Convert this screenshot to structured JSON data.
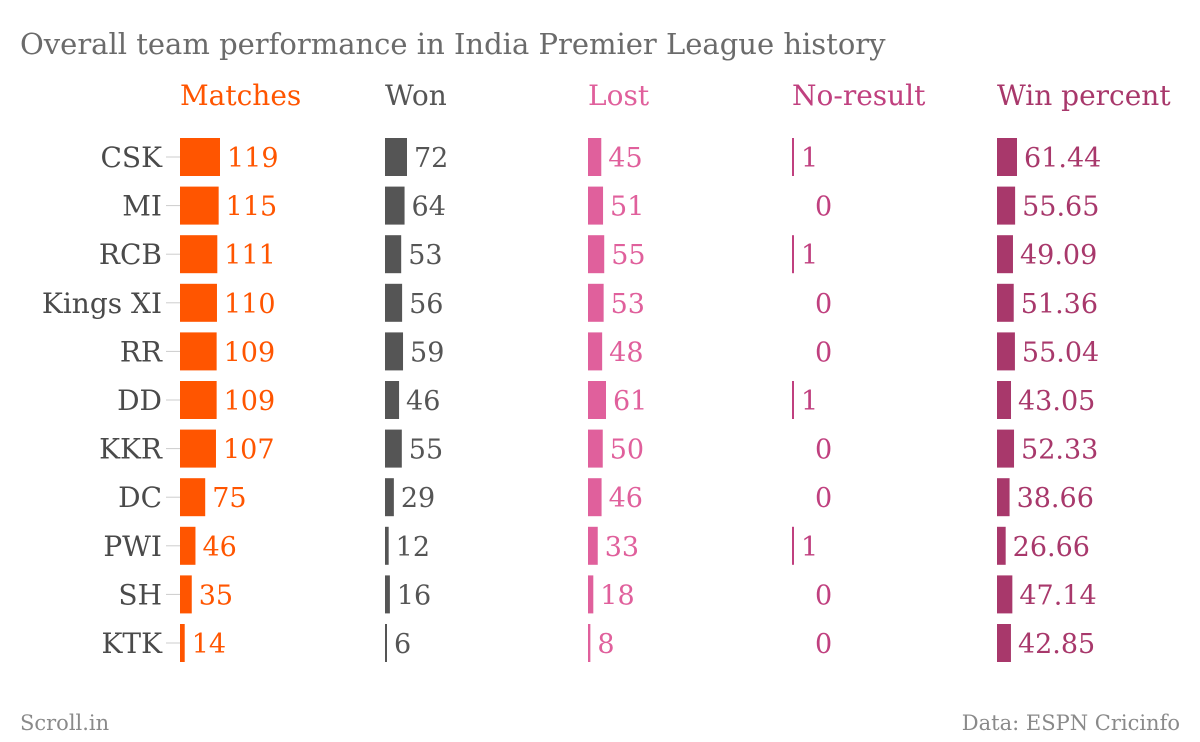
{
  "chart_data": {
    "type": "bar",
    "title": "Overall team performance in India Premier League history",
    "categories": [
      "CSK",
      "MI",
      "RCB",
      "Kings XI",
      "RR",
      "DD",
      "KKR",
      "DC",
      "PWI",
      "SH",
      "KTK"
    ],
    "series": [
      {
        "name": "Matches",
        "color": "#ff5500",
        "values": [
          119,
          115,
          111,
          110,
          109,
          109,
          107,
          75,
          46,
          35,
          14
        ],
        "labels": [
          "119",
          "115",
          "111",
          "110",
          "109",
          "109",
          "107",
          "75",
          "46",
          "35",
          "14"
        ]
      },
      {
        "name": "Won",
        "color": "#555555",
        "values": [
          72,
          64,
          53,
          56,
          59,
          46,
          55,
          29,
          12,
          16,
          6
        ],
        "labels": [
          "72",
          "64",
          "53",
          "56",
          "59",
          "46",
          "55",
          "29",
          "12",
          "16",
          "6"
        ]
      },
      {
        "name": "Lost",
        "color": "#e0609c",
        "values": [
          45,
          51,
          55,
          53,
          48,
          61,
          50,
          46,
          33,
          18,
          8
        ],
        "labels": [
          "45",
          "51",
          "55",
          "53",
          "48",
          "61",
          "50",
          "46",
          "33",
          "18",
          "8"
        ]
      },
      {
        "name": "No-result",
        "color": "#c0407f",
        "values": [
          1,
          0,
          1,
          0,
          0,
          1,
          0,
          0,
          1,
          0,
          0
        ],
        "labels": [
          "1",
          "0",
          "1",
          "0",
          "0",
          "1",
          "0",
          "0",
          "1",
          "0",
          "0"
        ]
      },
      {
        "name": "Win percent",
        "color": "#a8386b",
        "values": [
          61.44,
          55.65,
          49.09,
          51.36,
          55.04,
          43.05,
          52.33,
          38.66,
          26.66,
          47.14,
          42.85
        ],
        "labels": [
          "61.44",
          "55.65",
          "49.09",
          "51.36",
          "55.04",
          "43.05",
          "52.33",
          "38.66",
          "26.66",
          "47.14",
          "42.85"
        ]
      }
    ],
    "legend": "column headers at top",
    "grid": false
  },
  "footer": {
    "brand": "Scroll.in",
    "source": "Data: ESPN Cricinfo"
  },
  "colors": {
    "title": "#6b6b6b",
    "team_label": "#4a4a4a",
    "footer": "#8a8a8a",
    "tick": "#cccccc"
  }
}
